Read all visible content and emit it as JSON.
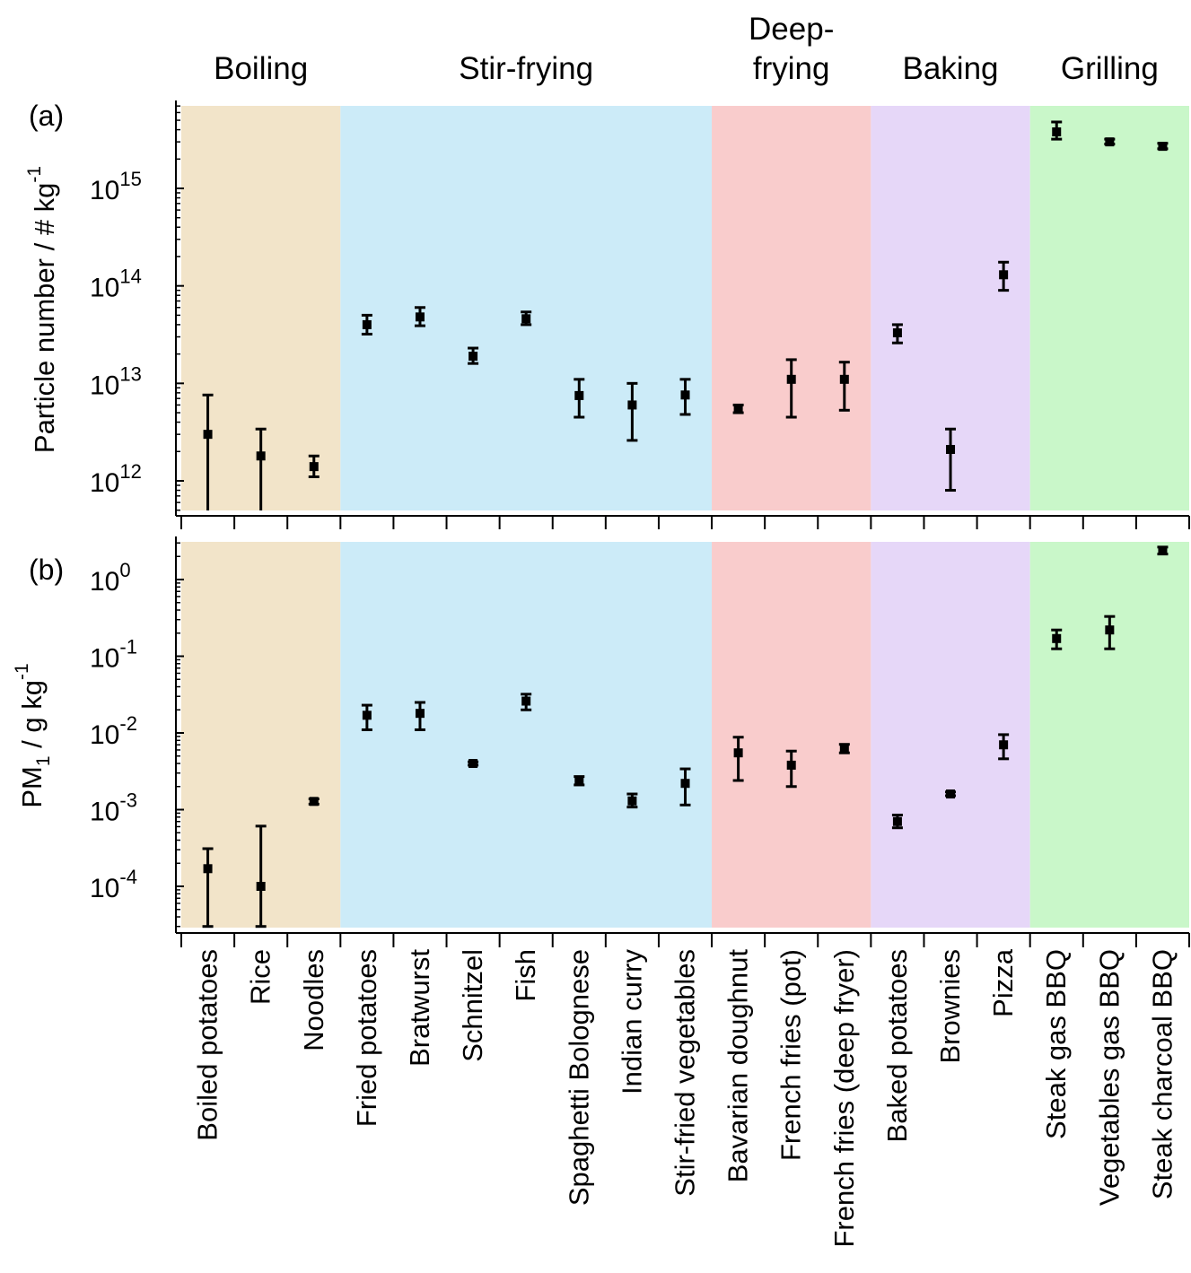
{
  "groups": [
    {
      "label": "Boiling",
      "color": "#f2e4c9",
      "start": 0,
      "end": 2
    },
    {
      "label": "Stir-frying",
      "color": "#ccebf8",
      "start": 3,
      "end": 9
    },
    {
      "label": "Deep-frying",
      "lines": [
        "Deep-",
        "frying"
      ],
      "color": "#f9cccc",
      "start": 10,
      "end": 12
    },
    {
      "label": "Baking",
      "color": "#e6d7f8",
      "start": 13,
      "end": 15
    },
    {
      "label": "Grilling",
      "color": "#c9f7c9",
      "start": 16,
      "end": 18
    }
  ],
  "categories": [
    "Boiled potatoes",
    "Rice",
    "Noodles",
    "Fried potatoes",
    "Bratwurst",
    "Schnitzel",
    "Fish",
    "Spaghetti Bolognese",
    "Indian curry",
    "Stir-fried vegetables",
    "Bavarian doughnut",
    "French fries (pot)",
    "French fries (deep fryer)",
    "Baked potatoes",
    "Brownies",
    "Pizza",
    "Steak gas BBQ",
    "Vegetables gas BBQ",
    "Steak charcoal BBQ"
  ],
  "chart_data": [
    {
      "type": "scatter",
      "panel_label": "(a)",
      "ylabel_main": "Particle number / # kg",
      "ylabel_sup": "-1",
      "yscale": "log",
      "ylim": [
        500000000000.0,
        7000000000000000.0
      ],
      "yticks": [
        {
          "value": 1000000000000.0,
          "label": "10",
          "exp": "12"
        },
        {
          "value": 10000000000000.0,
          "label": "10",
          "exp": "13"
        },
        {
          "value": 100000000000000.0,
          "label": "10",
          "exp": "14"
        },
        {
          "value": 1000000000000000.0,
          "label": "10",
          "exp": "15"
        }
      ],
      "values": [
        3000000000000.0,
        1800000000000.0,
        1400000000000.0,
        40000000000000.0,
        48000000000000.0,
        19000000000000.0,
        46000000000000.0,
        7500000000000.0,
        6000000000000.0,
        7600000000000.0,
        5400000000000.0,
        11000000000000.0,
        11000000000000.0,
        33000000000000.0,
        2100000000000.0,
        130000000000000.0,
        3800000000000000.0,
        3000000000000000.0,
        2700000000000000.0
      ],
      "err_low": [
        450000000000.0,
        450000000000.0,
        1100000000000.0,
        32000000000000.0,
        39000000000000.0,
        16000000000000.0,
        40000000000000.0,
        4500000000000.0,
        2600000000000.0,
        4800000000000.0,
        5000000000000.0,
        4500000000000.0,
        5300000000000.0,
        26000000000000.0,
        800000000000.0,
        90000000000000.0,
        3200000000000000.0,
        2850000000000000.0,
        2550000000000000.0
      ],
      "err_high": [
        7600000000000.0,
        3400000000000.0,
        1800000000000.0,
        50000000000000.0,
        60000000000000.0,
        23000000000000.0,
        54000000000000.0,
        11000000000000.0,
        10000000000000.0,
        11000000000000.0,
        6000000000000.0,
        17500000000000.0,
        16500000000000.0,
        40000000000000.0,
        3400000000000.0,
        175000000000000.0,
        4800000000000000.0,
        3200000000000000.0,
        2900000000000000.0
      ]
    },
    {
      "type": "scatter",
      "panel_label": "(b)",
      "ylabel_main": "PM",
      "ylabel_sub": "1",
      "ylabel_rest": " / g kg",
      "ylabel_sup": "-1",
      "yscale": "log",
      "ylim": [
        3e-05,
        3.5
      ],
      "yticks": [
        {
          "value": 0.0001,
          "label": "10",
          "exp": "-4"
        },
        {
          "value": 0.001,
          "label": "10",
          "exp": "-3"
        },
        {
          "value": 0.01,
          "label": "10",
          "exp": "-2"
        },
        {
          "value": 0.1,
          "label": "10",
          "exp": "-1"
        },
        {
          "value": 1,
          "label": "10",
          "exp": "0"
        }
      ],
      "values": [
        0.00017,
        0.0001,
        0.00128,
        0.017,
        0.018,
        0.004,
        0.026,
        0.0024,
        0.0013,
        0.0022,
        0.0055,
        0.0038,
        0.0063,
        0.0007,
        0.0016,
        0.007,
        0.17,
        0.22,
        2.4
      ],
      "err_low": [
        3e-05,
        3e-05,
        0.00118,
        0.011,
        0.011,
        0.0038,
        0.02,
        0.0021,
        0.00108,
        0.00115,
        0.0024,
        0.002,
        0.0055,
        0.00058,
        0.00152,
        0.0046,
        0.125,
        0.125,
        2.15
      ],
      "err_high": [
        0.00031,
        0.00061,
        0.00138,
        0.023,
        0.025,
        0.0042,
        0.032,
        0.0027,
        0.0016,
        0.0034,
        0.0088,
        0.0058,
        0.0071,
        0.00085,
        0.0017,
        0.0095,
        0.22,
        0.33,
        2.65
      ]
    }
  ]
}
